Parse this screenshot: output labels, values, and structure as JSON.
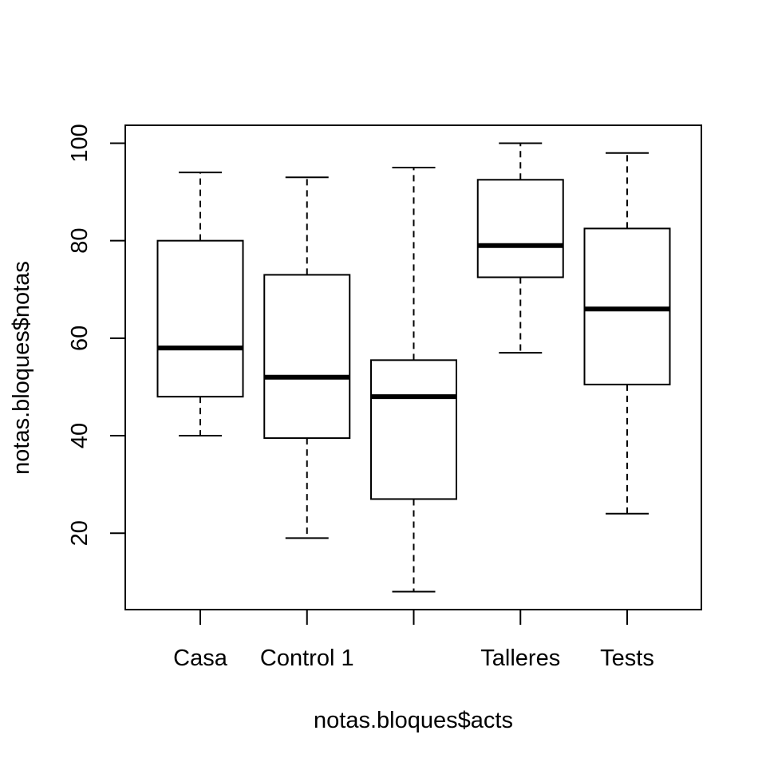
{
  "chart_data": {
    "type": "boxplot",
    "title": "",
    "xlabel": "notas.bloques$acts",
    "ylabel": "notas.bloques$notas",
    "categories": [
      "Casa",
      "Control 1",
      "",
      "Talleres",
      "Tests"
    ],
    "boxes": [
      {
        "category": "Casa",
        "whisker_low": 40,
        "q1": 48,
        "median": 58,
        "q3": 80,
        "whisker_high": 94
      },
      {
        "category": "Control 1",
        "whisker_low": 19,
        "q1": 39.5,
        "median": 52,
        "q3": 73,
        "whisker_high": 93
      },
      {
        "category": "",
        "whisker_low": 8,
        "q1": 27,
        "median": 48,
        "q3": 55.5,
        "whisker_high": 95
      },
      {
        "category": "Talleres",
        "whisker_low": 57,
        "q1": 72.5,
        "median": 79,
        "q3": 92.5,
        "whisker_high": 100
      },
      {
        "category": "Tests",
        "whisker_low": 24,
        "q1": 50.5,
        "median": 66,
        "q3": 82.5,
        "whisker_high": 98
      }
    ],
    "yticks": [
      20,
      40,
      60,
      80,
      100
    ],
    "ylim": [
      4.32,
      103.68
    ],
    "grid": false,
    "legend": "none",
    "colors": {
      "box_fill": "#ffffff",
      "stroke": "#000000",
      "background": "#ffffff"
    }
  }
}
